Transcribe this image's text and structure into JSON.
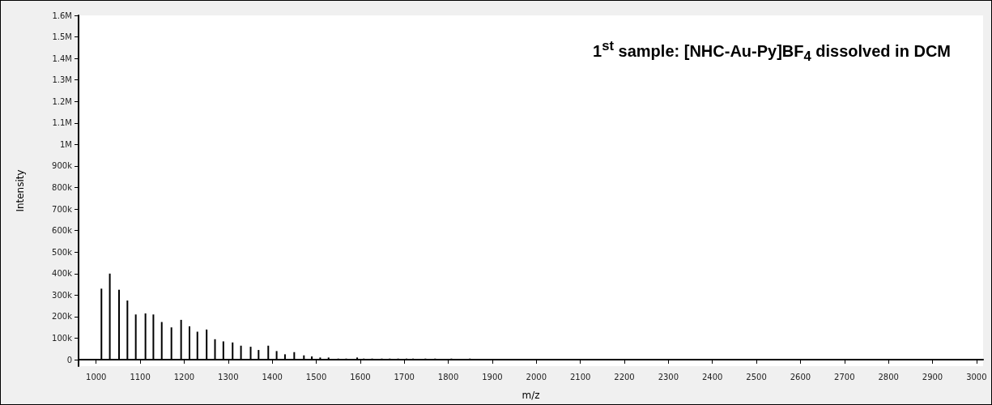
{
  "chart_data": {
    "type": "bar",
    "title": "1$^{st}$ sample: [NHC-Au-Py]BF$_{4}$ dissolved in DCM",
    "xlabel": "m/z",
    "ylabel": "Intensity",
    "x": [
      1000,
      1012,
      1031,
      1052,
      1071,
      1090,
      1112,
      1130,
      1149,
      1171,
      1193,
      1212,
      1230,
      1251,
      1270,
      1289,
      1310,
      1329,
      1351,
      1369,
      1391,
      1410,
      1429,
      1450,
      1472,
      1490,
      1509,
      1528,
      1550,
      1568,
      1593,
      1608,
      1627,
      1649,
      1667,
      1686,
      1705,
      1720,
      1748,
      1770,
      1791,
      1807,
      1849,
      1866,
      1883,
      1902,
      1936,
      1941,
      2285,
      2998
    ],
    "values": [
      2000,
      330000,
      400000,
      325000,
      275000,
      210000,
      215000,
      210000,
      175000,
      150000,
      185000,
      155000,
      130000,
      140000,
      95000,
      85000,
      80000,
      65000,
      60000,
      45000,
      65000,
      40000,
      25000,
      35000,
      20000,
      15000,
      10000,
      10000,
      5000,
      5000,
      10000,
      5000,
      5000,
      5000,
      5000,
      5000,
      5000,
      5000,
      5000,
      5000,
      3000,
      5000,
      5000,
      3000,
      3000,
      3000,
      2000,
      2000,
      2000,
      2000
    ],
    "color": "#000000",
    "xlim": [
      960,
      3015
    ],
    "ylim": [
      -30000,
      1600000
    ],
    "xticks": [
      1000,
      1100,
      1200,
      1300,
      1400,
      1500,
      1600,
      1700,
      1800,
      1900,
      2000,
      2100,
      2200,
      2300,
      2400,
      2500,
      2600,
      2700,
      2800,
      2900,
      3000
    ],
    "yticks": [
      0,
      {
        "value": 100000,
        "label": "100k"
      },
      {
        "value": 200000,
        "label": "200k"
      },
      {
        "value": 300000,
        "label": "300k"
      },
      {
        "value": 400000,
        "label": "400k"
      },
      {
        "value": 500000,
        "label": "500k"
      },
      {
        "value": 600000,
        "label": "600k"
      },
      {
        "value": 700000,
        "label": "700k"
      },
      {
        "value": 800000,
        "label": "800k"
      },
      {
        "value": 900000,
        "label": "900k"
      },
      {
        "value": 1000000,
        "label": "1M"
      },
      {
        "value": 1100000,
        "label": "1.1M"
      },
      {
        "value": 1200000,
        "label": "1.2M"
      },
      {
        "value": 1300000,
        "label": "1.3M"
      },
      {
        "value": 1400000,
        "label": "1.4M"
      },
      {
        "value": 1500000,
        "label": "1.5M"
      },
      {
        "value": 1600000,
        "label": "1.6M"
      }
    ]
  }
}
